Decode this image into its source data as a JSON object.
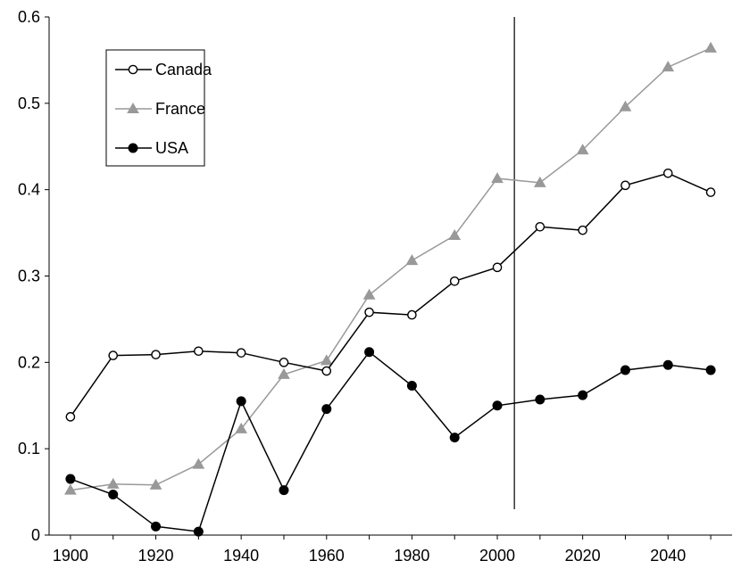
{
  "chart_data": {
    "type": "line",
    "title": "",
    "xlabel": "",
    "ylabel": "",
    "xlim": [
      1895,
      2055
    ],
    "ylim": [
      0,
      0.6
    ],
    "x_ticks": [
      "1900",
      "1920",
      "1940",
      "1960",
      "1980",
      "2000",
      "2020",
      "2040"
    ],
    "y_ticks": [
      "0",
      "0.1",
      "0.2",
      "0.3",
      "0.4",
      "0.5",
      "0.6"
    ],
    "grid": false,
    "legend_position": "top-left",
    "reference_line_x": 2004,
    "x": [
      1900,
      1910,
      1920,
      1930,
      1940,
      1950,
      1960,
      1970,
      1980,
      1990,
      2000,
      2010,
      2020,
      2030,
      2040,
      2050
    ],
    "series": [
      {
        "name": "Canada",
        "color": "#000000",
        "marker": "open-circle",
        "values": [
          0.137,
          0.208,
          0.209,
          0.213,
          0.211,
          0.2,
          0.19,
          0.258,
          0.255,
          0.294,
          0.31,
          0.357,
          0.353,
          0.405,
          0.419,
          0.397
        ]
      },
      {
        "name": "France",
        "color": "#999999",
        "marker": "filled-triangle",
        "values": [
          0.052,
          0.059,
          0.058,
          0.082,
          0.123,
          0.186,
          0.202,
          0.278,
          0.318,
          0.347,
          0.413,
          0.408,
          0.446,
          0.496,
          0.542,
          0.564
        ]
      },
      {
        "name": "USA",
        "color": "#000000",
        "marker": "filled-circle",
        "values": [
          0.065,
          0.047,
          0.01,
          0.004,
          0.155,
          0.052,
          0.146,
          0.212,
          0.173,
          0.113,
          0.15,
          0.157,
          0.162,
          0.191,
          0.197,
          0.191
        ]
      }
    ]
  }
}
